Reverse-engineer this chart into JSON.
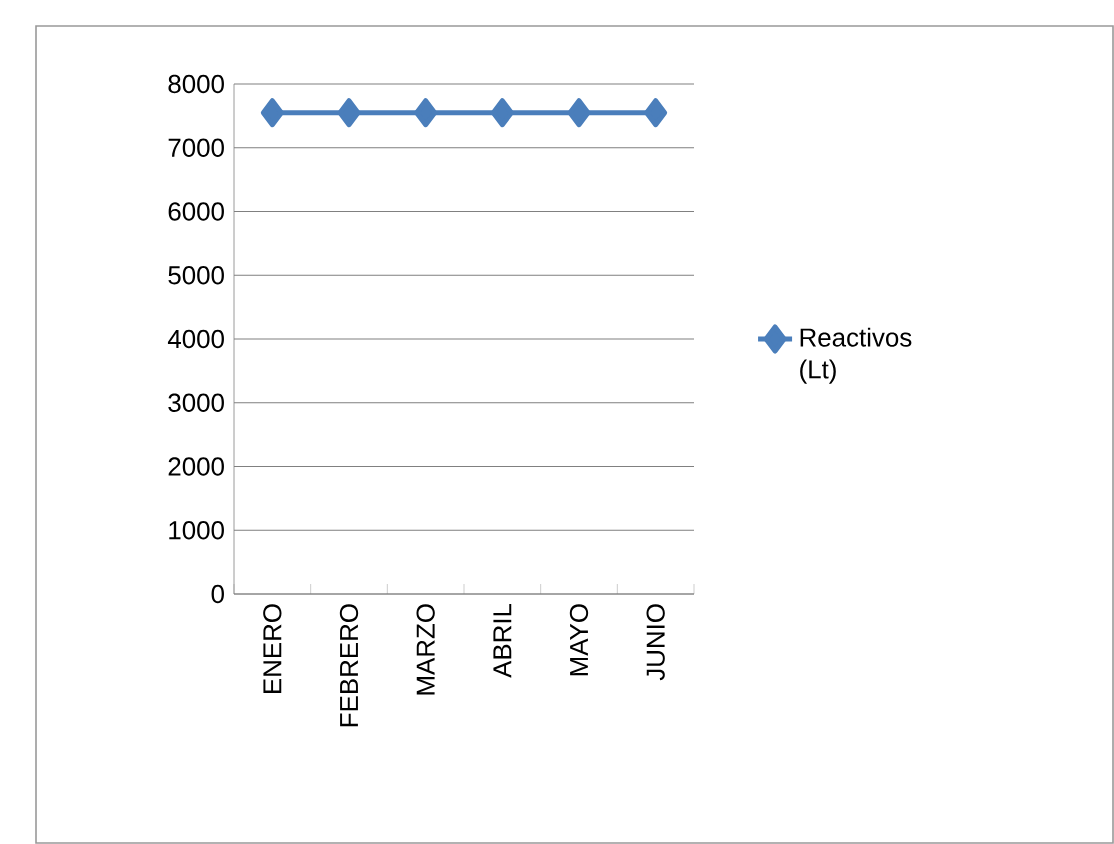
{
  "chart_data": {
    "type": "line",
    "categories": [
      "ENERO",
      "FEBRERO",
      "MARZO",
      "ABRIL",
      "MAYO",
      "JUNIO"
    ],
    "series": [
      {
        "name": "Reactivos (Lt)",
        "color": "#4a7ebb",
        "values": [
          7550,
          7550,
          7550,
          7550,
          7550,
          7550
        ]
      }
    ],
    "ylim": [
      0,
      8000
    ],
    "yticks": [
      0,
      1000,
      2000,
      3000,
      4000,
      5000,
      6000,
      7000,
      8000
    ],
    "grid": "y",
    "legend": "right",
    "marker": "diamond",
    "line_style": "solid"
  }
}
